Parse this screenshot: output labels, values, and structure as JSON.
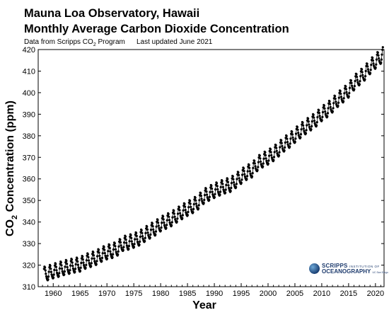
{
  "header": {
    "title_line1": "Mauna Loa Observatory, Hawaii",
    "title_line2": "Monthly Average Carbon Dioxide Concentration",
    "source_prefix": "Data from Scripps CO",
    "source_sub": "2",
    "source_suffix": " Program",
    "updated": "Last updated June 2021"
  },
  "logo": {
    "line1": "SCRIPPS",
    "line1_small": "INSTITUTION OF",
    "line2": "OCEANOGRAPHY",
    "line2_small": "UC San Diego"
  },
  "colors": {
    "data": "#000000",
    "axis": "#000000",
    "background": "#ffffff"
  },
  "chart_data": {
    "type": "line",
    "marker": "dot",
    "title": "Mauna Loa Observatory, Hawaii — Monthly Average Carbon Dioxide Concentration",
    "xlabel": "Year",
    "ylabel_main": "CO",
    "ylabel_sub": "2",
    "ylabel_rest": " Concentration (ppm)",
    "xlim": [
      1957.2,
      2021.6
    ],
    "ylim": [
      310,
      420
    ],
    "xticks": [
      1960,
      1965,
      1970,
      1975,
      1980,
      1985,
      1990,
      1995,
      2000,
      2005,
      2010,
      2015,
      2020
    ],
    "yticks": [
      310,
      320,
      330,
      340,
      350,
      360,
      370,
      380,
      390,
      400,
      410,
      420
    ],
    "grid": false,
    "series": [
      {
        "unit": "ppm",
        "annual_mean_x": [
          1958,
          1959,
          1960,
          1961,
          1962,
          1963,
          1964,
          1965,
          1966,
          1967,
          1968,
          1969,
          1970,
          1971,
          1972,
          1973,
          1974,
          1975,
          1976,
          1977,
          1978,
          1979,
          1980,
          1981,
          1982,
          1983,
          1984,
          1985,
          1986,
          1987,
          1988,
          1989,
          1990,
          1991,
          1992,
          1993,
          1994,
          1995,
          1996,
          1997,
          1998,
          1999,
          2000,
          2001,
          2002,
          2003,
          2004,
          2005,
          2006,
          2007,
          2008,
          2009,
          2010,
          2011,
          2012,
          2013,
          2014,
          2015,
          2016,
          2017,
          2018,
          2019,
          2020,
          2021
        ],
        "annual_mean_y": [
          315.3,
          316.0,
          316.9,
          317.6,
          318.4,
          319.0,
          319.6,
          320.0,
          321.4,
          322.2,
          323.1,
          324.6,
          325.7,
          326.3,
          327.5,
          329.7,
          330.2,
          331.1,
          332.1,
          333.8,
          335.4,
          336.8,
          338.7,
          339.9,
          341.1,
          342.8,
          344.4,
          345.9,
          347.2,
          348.9,
          351.5,
          352.9,
          354.2,
          355.3,
          356.3,
          357.0,
          358.8,
          360.8,
          362.6,
          363.7,
          366.7,
          368.4,
          369.7,
          371.3,
          373.5,
          375.8,
          377.5,
          379.8,
          381.9,
          383.8,
          385.6,
          387.4,
          389.9,
          391.6,
          393.9,
          396.5,
          398.6,
          400.8,
          404.2,
          406.5,
          408.7,
          411.7,
          414.2,
          416.5
        ],
        "seasonal_amplitude_ppm": 6.5,
        "first_point": [
          1958.21,
          315.7
        ],
        "last_point": [
          2021.38,
          419.1
        ]
      }
    ]
  }
}
